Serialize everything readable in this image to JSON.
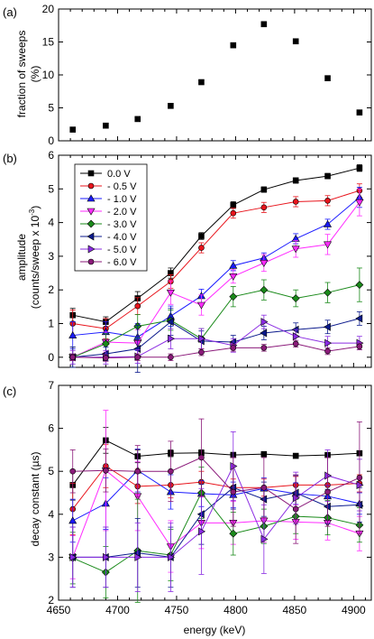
{
  "figure": {
    "xlabel": "energy (keV)",
    "xticks": [
      "4650",
      "4700",
      "4750",
      "4800",
      "4850",
      "4900"
    ],
    "energies": [
      4662,
      4690,
      4717,
      4745,
      4771,
      4798,
      4824,
      4851,
      4878,
      4905
    ],
    "series_names": [
      "0.0 V",
      "- 0.5 V",
      "- 1.0 V",
      "- 2.0 V",
      "- 3.0 V",
      "- 4.0 V",
      "- 5.0 V",
      "- 6.0 V"
    ],
    "series_colors": [
      "#000000",
      "#e8141c",
      "#1a1aff",
      "#ff2bff",
      "#1a8a1a",
      "#0b1a8c",
      "#8a2be2",
      "#8b1a7a"
    ],
    "series_markers": [
      "square",
      "circle",
      "triangle-up",
      "triangle-down",
      "diamond",
      "triangle-left",
      "triangle-right",
      "circle"
    ]
  },
  "chart_data": [
    {
      "type": "scatter",
      "panel_label": "(a)",
      "title": "",
      "xlabel": "",
      "ylabel": "fraction of sweeps (%)",
      "ylabel_lines": [
        "fraction of sweeps",
        "(%)"
      ],
      "xlim": [
        4650,
        4915
      ],
      "ylim": [
        0,
        20
      ],
      "yticks": [
        0,
        5,
        10,
        15,
        20
      ],
      "x": [
        4662,
        4690,
        4717,
        4745,
        4771,
        4798,
        4824,
        4851,
        4878,
        4905
      ],
      "y": [
        1.7,
        2.3,
        3.3,
        5.3,
        8.9,
        14.5,
        17.7,
        15.1,
        9.5,
        4.3
      ],
      "marker_color": "#000000"
    },
    {
      "type": "line",
      "panel_label": "(b)",
      "title": "",
      "xlabel": "",
      "ylabel": "amplitude (counts/sweep x 10^-3)",
      "ylabel_lines": [
        "amplitude",
        "(counts/sweep x 10",
        "-3",
        ")"
      ],
      "xlim": [
        4650,
        4915
      ],
      "ylim": [
        -0.3,
        6
      ],
      "yticks": [
        0,
        1,
        2,
        3,
        4,
        5,
        6
      ],
      "legend": "top-left",
      "x": [
        4662,
        4690,
        4717,
        4745,
        4771,
        4798,
        4824,
        4851,
        4878,
        4905
      ],
      "series": [
        {
          "name": "0.0 V",
          "values": [
            1.25,
            1.05,
            1.75,
            2.5,
            3.6,
            4.52,
            4.98,
            5.25,
            5.38,
            5.62
          ],
          "err": [
            0.2,
            0.15,
            0.2,
            0.15,
            0.1,
            0.1,
            0.08,
            0.08,
            0.08,
            0.1
          ]
        },
        {
          "name": "- 0.5 V",
          "values": [
            1.0,
            0.85,
            1.52,
            2.25,
            3.25,
            4.28,
            4.45,
            4.62,
            4.65,
            4.95
          ],
          "err": [
            0.4,
            0.3,
            0.25,
            0.2,
            0.15,
            0.15,
            0.15,
            0.15,
            0.15,
            0.2
          ]
        },
        {
          "name": "- 1.0 V",
          "values": [
            0.65,
            0.75,
            0.6,
            1.22,
            1.82,
            2.72,
            2.95,
            3.52,
            3.95,
            4.75
          ],
          "err": [
            0.4,
            0.3,
            0.4,
            0.3,
            0.2,
            0.15,
            0.15,
            0.15,
            0.15,
            0.3
          ]
        },
        {
          "name": "- 2.0 V",
          "values": [
            0.0,
            0.45,
            0.42,
            1.92,
            1.55,
            2.4,
            2.8,
            3.22,
            3.35,
            4.6
          ],
          "err": [
            0.3,
            0.3,
            0.4,
            0.35,
            0.3,
            0.2,
            0.25,
            0.25,
            0.3,
            0.4
          ]
        },
        {
          "name": "- 3.0 V",
          "values": [
            0.0,
            0.4,
            0.92,
            1.1,
            0.55,
            1.8,
            2.0,
            1.75,
            1.92,
            2.15
          ],
          "err": [
            0.3,
            0.3,
            0.35,
            0.3,
            0.3,
            0.3,
            0.3,
            0.25,
            0.3,
            0.5
          ]
        },
        {
          "name": "- 4.0 V",
          "values": [
            0.0,
            0.1,
            0.25,
            1.05,
            0.48,
            0.45,
            0.72,
            0.82,
            0.9,
            1.15
          ],
          "err": [
            0.3,
            0.2,
            0.7,
            0.4,
            0.3,
            0.2,
            0.2,
            0.2,
            0.2,
            0.2
          ]
        },
        {
          "name": "- 5.0 V",
          "values": [
            0.0,
            0.0,
            0.02,
            0.55,
            0.55,
            0.35,
            1.05,
            0.62,
            0.42,
            0.42
          ],
          "err": [
            0.2,
            0.2,
            0.2,
            0.3,
            0.3,
            0.2,
            0.2,
            0.2,
            0.2,
            0.2
          ]
        },
        {
          "name": "- 6.0 V",
          "values": [
            0.0,
            -0.02,
            0.0,
            0.0,
            0.15,
            0.28,
            0.28,
            0.4,
            0.18,
            0.32
          ],
          "err": [
            0.1,
            0.1,
            0.1,
            0.1,
            0.1,
            0.1,
            0.1,
            0.1,
            0.1,
            0.1
          ]
        }
      ]
    },
    {
      "type": "line",
      "panel_label": "(c)",
      "title": "",
      "xlabel": "energy (keV)",
      "ylabel": "decay constant (µs)",
      "ylabel_lines": [
        "decay constant (µs)"
      ],
      "xlim": [
        4650,
        4915
      ],
      "ylim": [
        2,
        7
      ],
      "yticks": [
        2,
        3,
        4,
        5,
        6,
        7
      ],
      "x": [
        4662,
        4690,
        4717,
        4745,
        4771,
        4798,
        4824,
        4851,
        4878,
        4905
      ],
      "series": [
        {
          "name": "0.0 V",
          "values": [
            4.68,
            5.72,
            5.35,
            5.42,
            5.43,
            5.38,
            5.4,
            5.36,
            5.38,
            5.42
          ],
          "err": [
            0.35,
            0.3,
            0.15,
            0.08,
            0.07,
            0.06,
            0.05,
            0.05,
            0.05,
            0.06
          ]
        },
        {
          "name": "- 0.5 V",
          "values": [
            4.12,
            5.12,
            4.65,
            4.68,
            4.75,
            4.62,
            4.62,
            4.68,
            4.68,
            4.72
          ],
          "err": [
            0.6,
            0.5,
            0.4,
            0.3,
            0.25,
            0.2,
            0.2,
            0.2,
            0.2,
            0.2
          ]
        },
        {
          "name": "- 1.0 V",
          "values": [
            3.85,
            4.25,
            5.02,
            4.52,
            4.48,
            4.45,
            4.6,
            4.48,
            4.42,
            4.25
          ],
          "err": [
            0.5,
            0.6,
            0.5,
            0.4,
            0.3,
            0.3,
            0.25,
            0.25,
            0.25,
            0.25
          ]
        },
        {
          "name": "- 2.0 V",
          "values": [
            3.0,
            5.02,
            4.42,
            3.25,
            3.8,
            3.8,
            3.85,
            3.82,
            3.8,
            3.55
          ],
          "err": [
            0.5,
            1.4,
            0.8,
            0.6,
            0.6,
            0.5,
            0.5,
            0.4,
            0.4,
            0.4
          ]
        },
        {
          "name": "- 3.0 V",
          "values": [
            2.98,
            2.65,
            3.15,
            3.05,
            4.5,
            3.55,
            3.72,
            3.95,
            3.92,
            3.75
          ],
          "err": [
            0.6,
            0.6,
            1.2,
            0.6,
            0.6,
            0.5,
            0.4,
            0.4,
            0.4,
            0.4
          ]
        },
        {
          "name": "- 4.0 V",
          "values": [
            3.0,
            3.0,
            3.1,
            3.0,
            4.0,
            4.62,
            4.35,
            4.5,
            4.18,
            4.22
          ],
          "err": [
            0.7,
            0.7,
            0.8,
            0.7,
            0.7,
            0.5,
            0.4,
            0.4,
            0.4,
            0.4
          ]
        },
        {
          "name": "- 5.0 V",
          "values": [
            3.0,
            3.0,
            3.0,
            3.0,
            3.6,
            5.12,
            3.42,
            4.38,
            4.9,
            4.68
          ],
          "err": [
            0.7,
            0.7,
            0.8,
            0.8,
            1.0,
            0.8,
            0.8,
            0.6,
            0.6,
            0.6
          ]
        },
        {
          "name": "- 6.0 V",
          "values": [
            5.0,
            5.02,
            5.0,
            5.0,
            5.32,
            4.52,
            4.62,
            4.12,
            4.52,
            4.85
          ],
          "err": [
            0.5,
            0.5,
            0.6,
            0.7,
            0.9,
            0.8,
            0.7,
            0.8,
            0.8,
            1.3
          ]
        }
      ]
    }
  ]
}
